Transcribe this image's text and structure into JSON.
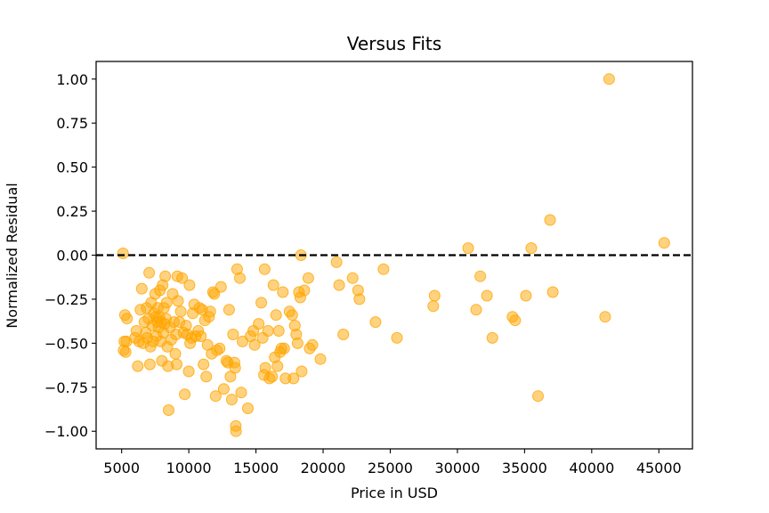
{
  "chart_data": {
    "type": "scatter",
    "title": "Versus Fits",
    "xlabel": "Price in USD",
    "ylabel": "Normalized Residual",
    "xlim": [
      3100,
      47500
    ],
    "ylim": [
      -1.1,
      1.1
    ],
    "xticks": [
      5000,
      10000,
      15000,
      20000,
      25000,
      30000,
      35000,
      40000,
      45000
    ],
    "xtick_labels": [
      "5000",
      "10000",
      "15000",
      "20000",
      "25000",
      "30000",
      "35000",
      "40000",
      "45000"
    ],
    "yticks": [
      1.0,
      0.75,
      0.5,
      0.25,
      0.0,
      -0.25,
      -0.5,
      -0.75,
      -1.0
    ],
    "ytick_labels": [
      "1.00",
      "0.75",
      "0.50",
      "0.25",
      "0.00",
      "−0.25",
      "−0.50",
      "−0.75",
      "−1.00"
    ],
    "grid": false,
    "marker_color": "#ffa500",
    "marker_alpha": 0.5,
    "reference_line": {
      "y": 0.0,
      "style": "dashed",
      "color": "#000000"
    },
    "series": [
      {
        "points": [
          [
            5100,
            0.01
          ],
          [
            5150,
            -0.54
          ],
          [
            5200,
            -0.49
          ],
          [
            5250,
            -0.34
          ],
          [
            5300,
            -0.55
          ],
          [
            5350,
            -0.49
          ],
          [
            5400,
            -0.36
          ],
          [
            6000,
            -0.47
          ],
          [
            6100,
            -0.43
          ],
          [
            6200,
            -0.63
          ],
          [
            6300,
            -0.49
          ],
          [
            6400,
            -0.31
          ],
          [
            6500,
            -0.19
          ],
          [
            6600,
            -0.5
          ],
          [
            6700,
            -0.38
          ],
          [
            6800,
            -0.44
          ],
          [
            6850,
            -0.3
          ],
          [
            6900,
            -0.47
          ],
          [
            7000,
            -0.36
          ],
          [
            7050,
            -0.1
          ],
          [
            7100,
            -0.62
          ],
          [
            7150,
            -0.52
          ],
          [
            7200,
            -0.27
          ],
          [
            7300,
            -0.4
          ],
          [
            7350,
            -0.49
          ],
          [
            7400,
            -0.33
          ],
          [
            7500,
            -0.22
          ],
          [
            7550,
            -0.35
          ],
          [
            7600,
            -0.46
          ],
          [
            7650,
            -0.38
          ],
          [
            7700,
            -0.3
          ],
          [
            7750,
            -0.41
          ],
          [
            7800,
            -0.35
          ],
          [
            7850,
            -0.2
          ],
          [
            7900,
            -0.49
          ],
          [
            7950,
            -0.38
          ],
          [
            8000,
            -0.6
          ],
          [
            8050,
            -0.17
          ],
          [
            8100,
            -0.44
          ],
          [
            8150,
            -0.3
          ],
          [
            8200,
            -0.39
          ],
          [
            8250,
            -0.12
          ],
          [
            8300,
            -0.36
          ],
          [
            8350,
            -0.27
          ],
          [
            8400,
            -0.52
          ],
          [
            8450,
            -0.63
          ],
          [
            8500,
            -0.88
          ],
          [
            8600,
            -0.41
          ],
          [
            8700,
            -0.48
          ],
          [
            8800,
            -0.22
          ],
          [
            8900,
            -0.38
          ],
          [
            9000,
            -0.56
          ],
          [
            9050,
            -0.45
          ],
          [
            9100,
            -0.62
          ],
          [
            9150,
            -0.12
          ],
          [
            9200,
            -0.26
          ],
          [
            9300,
            -0.38
          ],
          [
            9400,
            -0.32
          ],
          [
            9500,
            -0.13
          ],
          [
            9600,
            -0.44
          ],
          [
            9700,
            -0.79
          ],
          [
            9800,
            -0.4
          ],
          [
            9900,
            -0.45
          ],
          [
            10000,
            -0.66
          ],
          [
            10050,
            -0.17
          ],
          [
            10100,
            -0.5
          ],
          [
            10200,
            -0.47
          ],
          [
            10300,
            -0.33
          ],
          [
            10400,
            -0.28
          ],
          [
            10500,
            -0.46
          ],
          [
            10700,
            -0.43
          ],
          [
            10800,
            -0.3
          ],
          [
            10900,
            -0.46
          ],
          [
            11000,
            -0.31
          ],
          [
            11100,
            -0.62
          ],
          [
            11200,
            -0.37
          ],
          [
            11300,
            -0.69
          ],
          [
            11400,
            -0.51
          ],
          [
            11500,
            -0.35
          ],
          [
            11600,
            -0.32
          ],
          [
            11700,
            -0.56
          ],
          [
            11800,
            -0.21
          ],
          [
            11900,
            -0.22
          ],
          [
            12000,
            -0.8
          ],
          [
            12100,
            -0.54
          ],
          [
            12300,
            -0.53
          ],
          [
            12400,
            -0.18
          ],
          [
            12600,
            -0.76
          ],
          [
            12800,
            -0.6
          ],
          [
            12900,
            -0.61
          ],
          [
            13000,
            -0.31
          ],
          [
            13100,
            -0.69
          ],
          [
            13200,
            -0.82
          ],
          [
            13300,
            -0.45
          ],
          [
            13400,
            -0.61
          ],
          [
            13450,
            -0.64
          ],
          [
            13500,
            -0.97
          ],
          [
            13520,
            -1.0
          ],
          [
            13600,
            -0.08
          ],
          [
            13800,
            -0.13
          ],
          [
            13900,
            -0.78
          ],
          [
            14000,
            -0.49
          ],
          [
            14400,
            -0.87
          ],
          [
            14600,
            -0.46
          ],
          [
            14800,
            -0.43
          ],
          [
            14900,
            -0.51
          ],
          [
            15200,
            -0.39
          ],
          [
            15400,
            -0.27
          ],
          [
            15500,
            -0.47
          ],
          [
            15600,
            -0.68
          ],
          [
            15650,
            -0.08
          ],
          [
            15700,
            -0.64
          ],
          [
            15900,
            -0.43
          ],
          [
            16000,
            -0.7
          ],
          [
            16200,
            -0.69
          ],
          [
            16300,
            -0.17
          ],
          [
            16400,
            -0.58
          ],
          [
            16500,
            -0.34
          ],
          [
            16600,
            -0.63
          ],
          [
            16700,
            -0.43
          ],
          [
            16800,
            -0.55
          ],
          [
            16900,
            -0.53
          ],
          [
            17000,
            -0.21
          ],
          [
            17100,
            -0.53
          ],
          [
            17200,
            -0.7
          ],
          [
            17500,
            -0.32
          ],
          [
            17700,
            -0.34
          ],
          [
            17800,
            -0.7
          ],
          [
            17900,
            -0.4
          ],
          [
            18000,
            -0.45
          ],
          [
            18100,
            -0.5
          ],
          [
            18200,
            -0.21
          ],
          [
            18300,
            -0.24
          ],
          [
            18350,
            0.0
          ],
          [
            18400,
            -0.66
          ],
          [
            18600,
            -0.2
          ],
          [
            18900,
            -0.13
          ],
          [
            19000,
            -0.53
          ],
          [
            19200,
            -0.51
          ],
          [
            19800,
            -0.59
          ],
          [
            21000,
            -0.04
          ],
          [
            21200,
            -0.17
          ],
          [
            21500,
            -0.45
          ],
          [
            22200,
            -0.13
          ],
          [
            22600,
            -0.2
          ],
          [
            22700,
            -0.25
          ],
          [
            23900,
            -0.38
          ],
          [
            24500,
            -0.08
          ],
          [
            25500,
            -0.47
          ],
          [
            28200,
            -0.29
          ],
          [
            28300,
            -0.23
          ],
          [
            30800,
            0.04
          ],
          [
            31400,
            -0.31
          ],
          [
            31700,
            -0.12
          ],
          [
            32200,
            -0.23
          ],
          [
            32600,
            -0.47
          ],
          [
            34100,
            -0.35
          ],
          [
            34300,
            -0.37
          ],
          [
            35100,
            -0.23
          ],
          [
            35500,
            0.04
          ],
          [
            36000,
            -0.8
          ],
          [
            36900,
            0.2
          ],
          [
            37100,
            -0.21
          ],
          [
            41000,
            -0.35
          ],
          [
            41300,
            1.0
          ],
          [
            45400,
            0.07
          ]
        ]
      }
    ]
  }
}
